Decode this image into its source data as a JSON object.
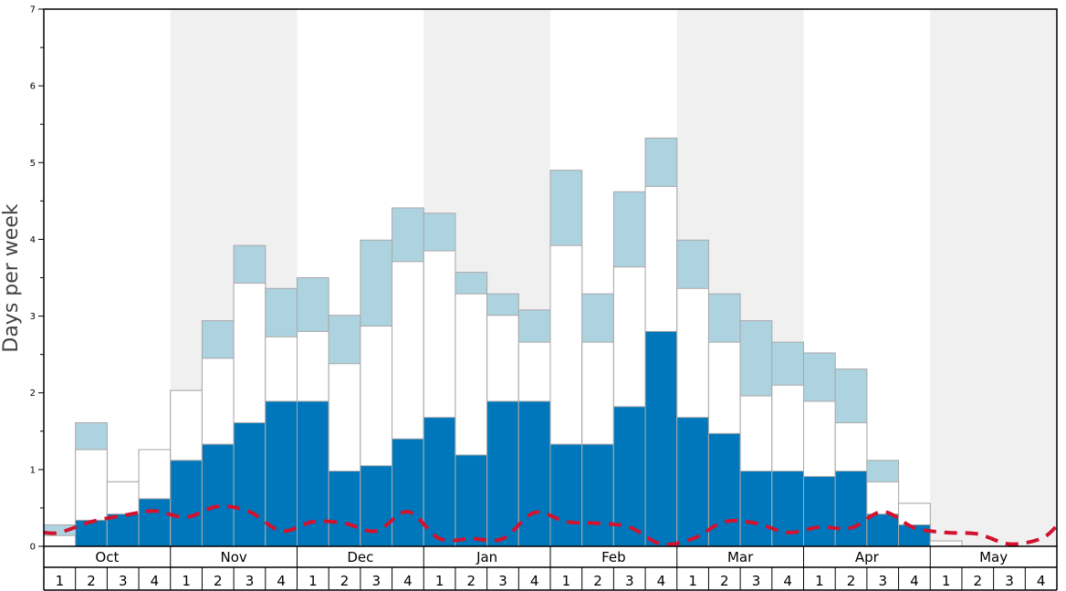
{
  "chart_data": {
    "type": "bar",
    "ylabel": "Days per week",
    "ylim": [
      0,
      7
    ],
    "y_ticks": [
      "0",
      "1",
      "2",
      "3",
      "4",
      "5",
      "6",
      "7"
    ],
    "months": [
      "Oct",
      "Nov",
      "Dec",
      "Jan",
      "Feb",
      "Mar",
      "Apr",
      "May"
    ],
    "week_labels": [
      "1",
      "2",
      "3",
      "4",
      "1",
      "2",
      "3",
      "4",
      "1",
      "2",
      "3",
      "4",
      "1",
      "2",
      "3",
      "4",
      "1",
      "2",
      "3",
      "4",
      "1",
      "2",
      "3",
      "4",
      "1",
      "2",
      "3",
      "4",
      "1",
      "2",
      "3",
      "4"
    ],
    "series": [
      {
        "values": [
          0.0,
          0.34,
          0.42,
          0.62,
          1.12,
          1.33,
          1.61,
          1.89,
          1.89,
          0.98,
          1.05,
          1.4,
          1.68,
          1.19,
          1.89,
          1.89,
          1.33,
          1.33,
          1.82,
          2.8,
          1.68,
          1.47,
          0.98,
          0.98,
          0.91,
          0.98,
          0.42,
          0.28,
          0.0,
          0.0,
          0.0,
          0.0
        ]
      },
      {
        "values": [
          0.14,
          1.26,
          0.84,
          1.26,
          2.03,
          2.45,
          3.43,
          2.73,
          2.8,
          2.38,
          2.87,
          3.71,
          3.85,
          3.29,
          3.01,
          2.66,
          3.92,
          2.66,
          3.64,
          4.69,
          3.36,
          2.66,
          1.96,
          2.1,
          1.89,
          1.61,
          0.84,
          0.56,
          0.07,
          0.0,
          0.0,
          0.0
        ]
      },
      {
        "values": [
          0.28,
          1.61,
          0.84,
          1.26,
          2.03,
          2.94,
          3.92,
          3.36,
          3.5,
          3.01,
          3.99,
          4.41,
          4.34,
          3.57,
          3.29,
          3.08,
          4.9,
          3.29,
          4.62,
          5.32,
          3.99,
          3.29,
          2.94,
          2.66,
          2.52,
          2.31,
          1.12,
          0.56,
          0.07,
          0.0,
          0.0,
          0.0
        ]
      },
      {
        "values": [
          0.18,
          0.32,
          0.4,
          0.46,
          0.38,
          0.52,
          0.45,
          0.2,
          0.32,
          0.3,
          0.2,
          0.45,
          0.1,
          0.1,
          0.1,
          0.44,
          0.32,
          0.3,
          0.25,
          0.03,
          0.1,
          0.32,
          0.3,
          0.18,
          0.25,
          0.24,
          0.45,
          0.24,
          0.18,
          0.16,
          0.03,
          0.1
        ]
      }
    ],
    "colors": {
      "base": "#0077bb",
      "middle": "#ffffff",
      "top": "#aed3e0",
      "dashed_line": "#d2122e",
      "band": "#f0f0f0",
      "bar_stroke": "#a8a8a8"
    }
  }
}
